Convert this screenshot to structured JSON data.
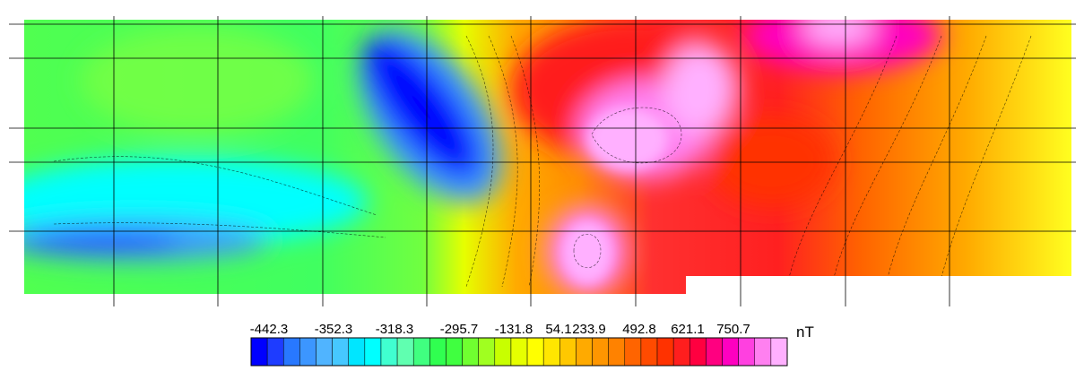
{
  "legend": {
    "labels": [
      "-442.3",
      "-352.3",
      "-318.3",
      "-295.7",
      "-131.8",
      "54.1",
      "233.9",
      "492.8",
      "621.1",
      "750.7"
    ],
    "unit": "nT",
    "colors": [
      "#0000ff",
      "#1e3cff",
      "#2878ff",
      "#3c96ff",
      "#50b4ff",
      "#46c8ff",
      "#00e6ff",
      "#00ffff",
      "#40ffd0",
      "#60ffb0",
      "#40ff80",
      "#30ff50",
      "#40ff40",
      "#70ff30",
      "#a0ff20",
      "#c8ff00",
      "#e6ff00",
      "#ffff00",
      "#ffe600",
      "#ffc800",
      "#ffaa00",
      "#ff9600",
      "#ff8200",
      "#ff6400",
      "#ff4b00",
      "#ff3200",
      "#ff1e1e",
      "#ff0040",
      "#ff0080",
      "#ff00c0",
      "#ff40e0",
      "#ff80f0",
      "#ffb0ff"
    ]
  }
}
